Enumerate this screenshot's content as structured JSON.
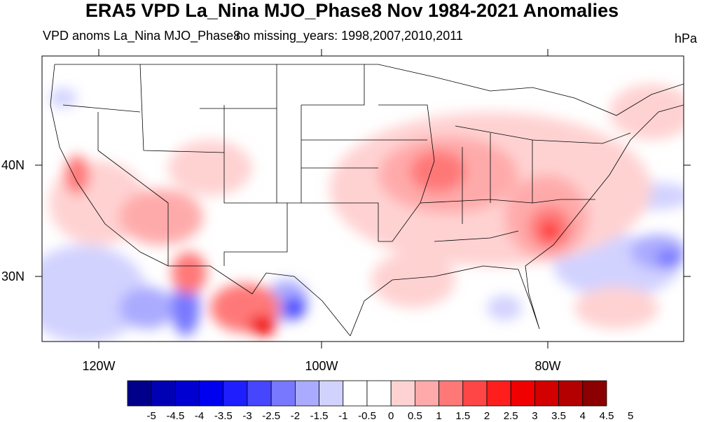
{
  "title": "ERA5 VPD La_Nina MJO_Phase8 Nov 1984-2021 Anomalies",
  "subtitle_left": "VPD anoms La_Nina MJO_Phase8",
  "subtitle_center": "no missing_years: 1998,2007,2010,2011",
  "units": "hPa",
  "lat_labels": [
    "40N",
    "30N"
  ],
  "lon_labels": [
    "120W",
    "100W",
    "80W"
  ],
  "colorbar": {
    "labels": [
      "-5",
      "-4.5",
      "-4",
      "-3.5",
      "-3",
      "-2.5",
      "-2",
      "-1.5",
      "-1",
      "-0.5",
      "0",
      "0.5",
      "1",
      "1.5",
      "2",
      "2.5",
      "3",
      "3.5",
      "4",
      "4.5",
      "5"
    ],
    "colors": [
      "#00008b",
      "#0000b4",
      "#0000d2",
      "#0000f0",
      "#1e1eff",
      "#4646ff",
      "#7878ff",
      "#aaaaff",
      "#d2d2ff",
      "#ffffff",
      "#ffffff",
      "#ffd2d2",
      "#ffaaaa",
      "#ff7878",
      "#ff4646",
      "#ff1e1e",
      "#f00000",
      "#d20000",
      "#b40000",
      "#8b0000"
    ]
  }
}
